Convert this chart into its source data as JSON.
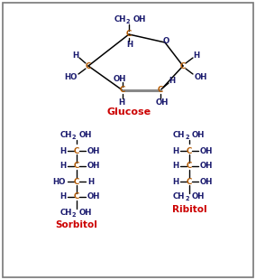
{
  "bg_color": "#ffffff",
  "border_color": "#777777",
  "dark_blue": "#1a1a6e",
  "orange": "#b35900",
  "red": "#cc0000",
  "gray_line": "#888888",
  "black": "#000000",
  "title": "Glucose",
  "sorbitol_label": "Sorbitol",
  "ribitol_label": "Ribitol",
  "figsize": [
    2.84,
    3.1
  ],
  "dpi": 100
}
